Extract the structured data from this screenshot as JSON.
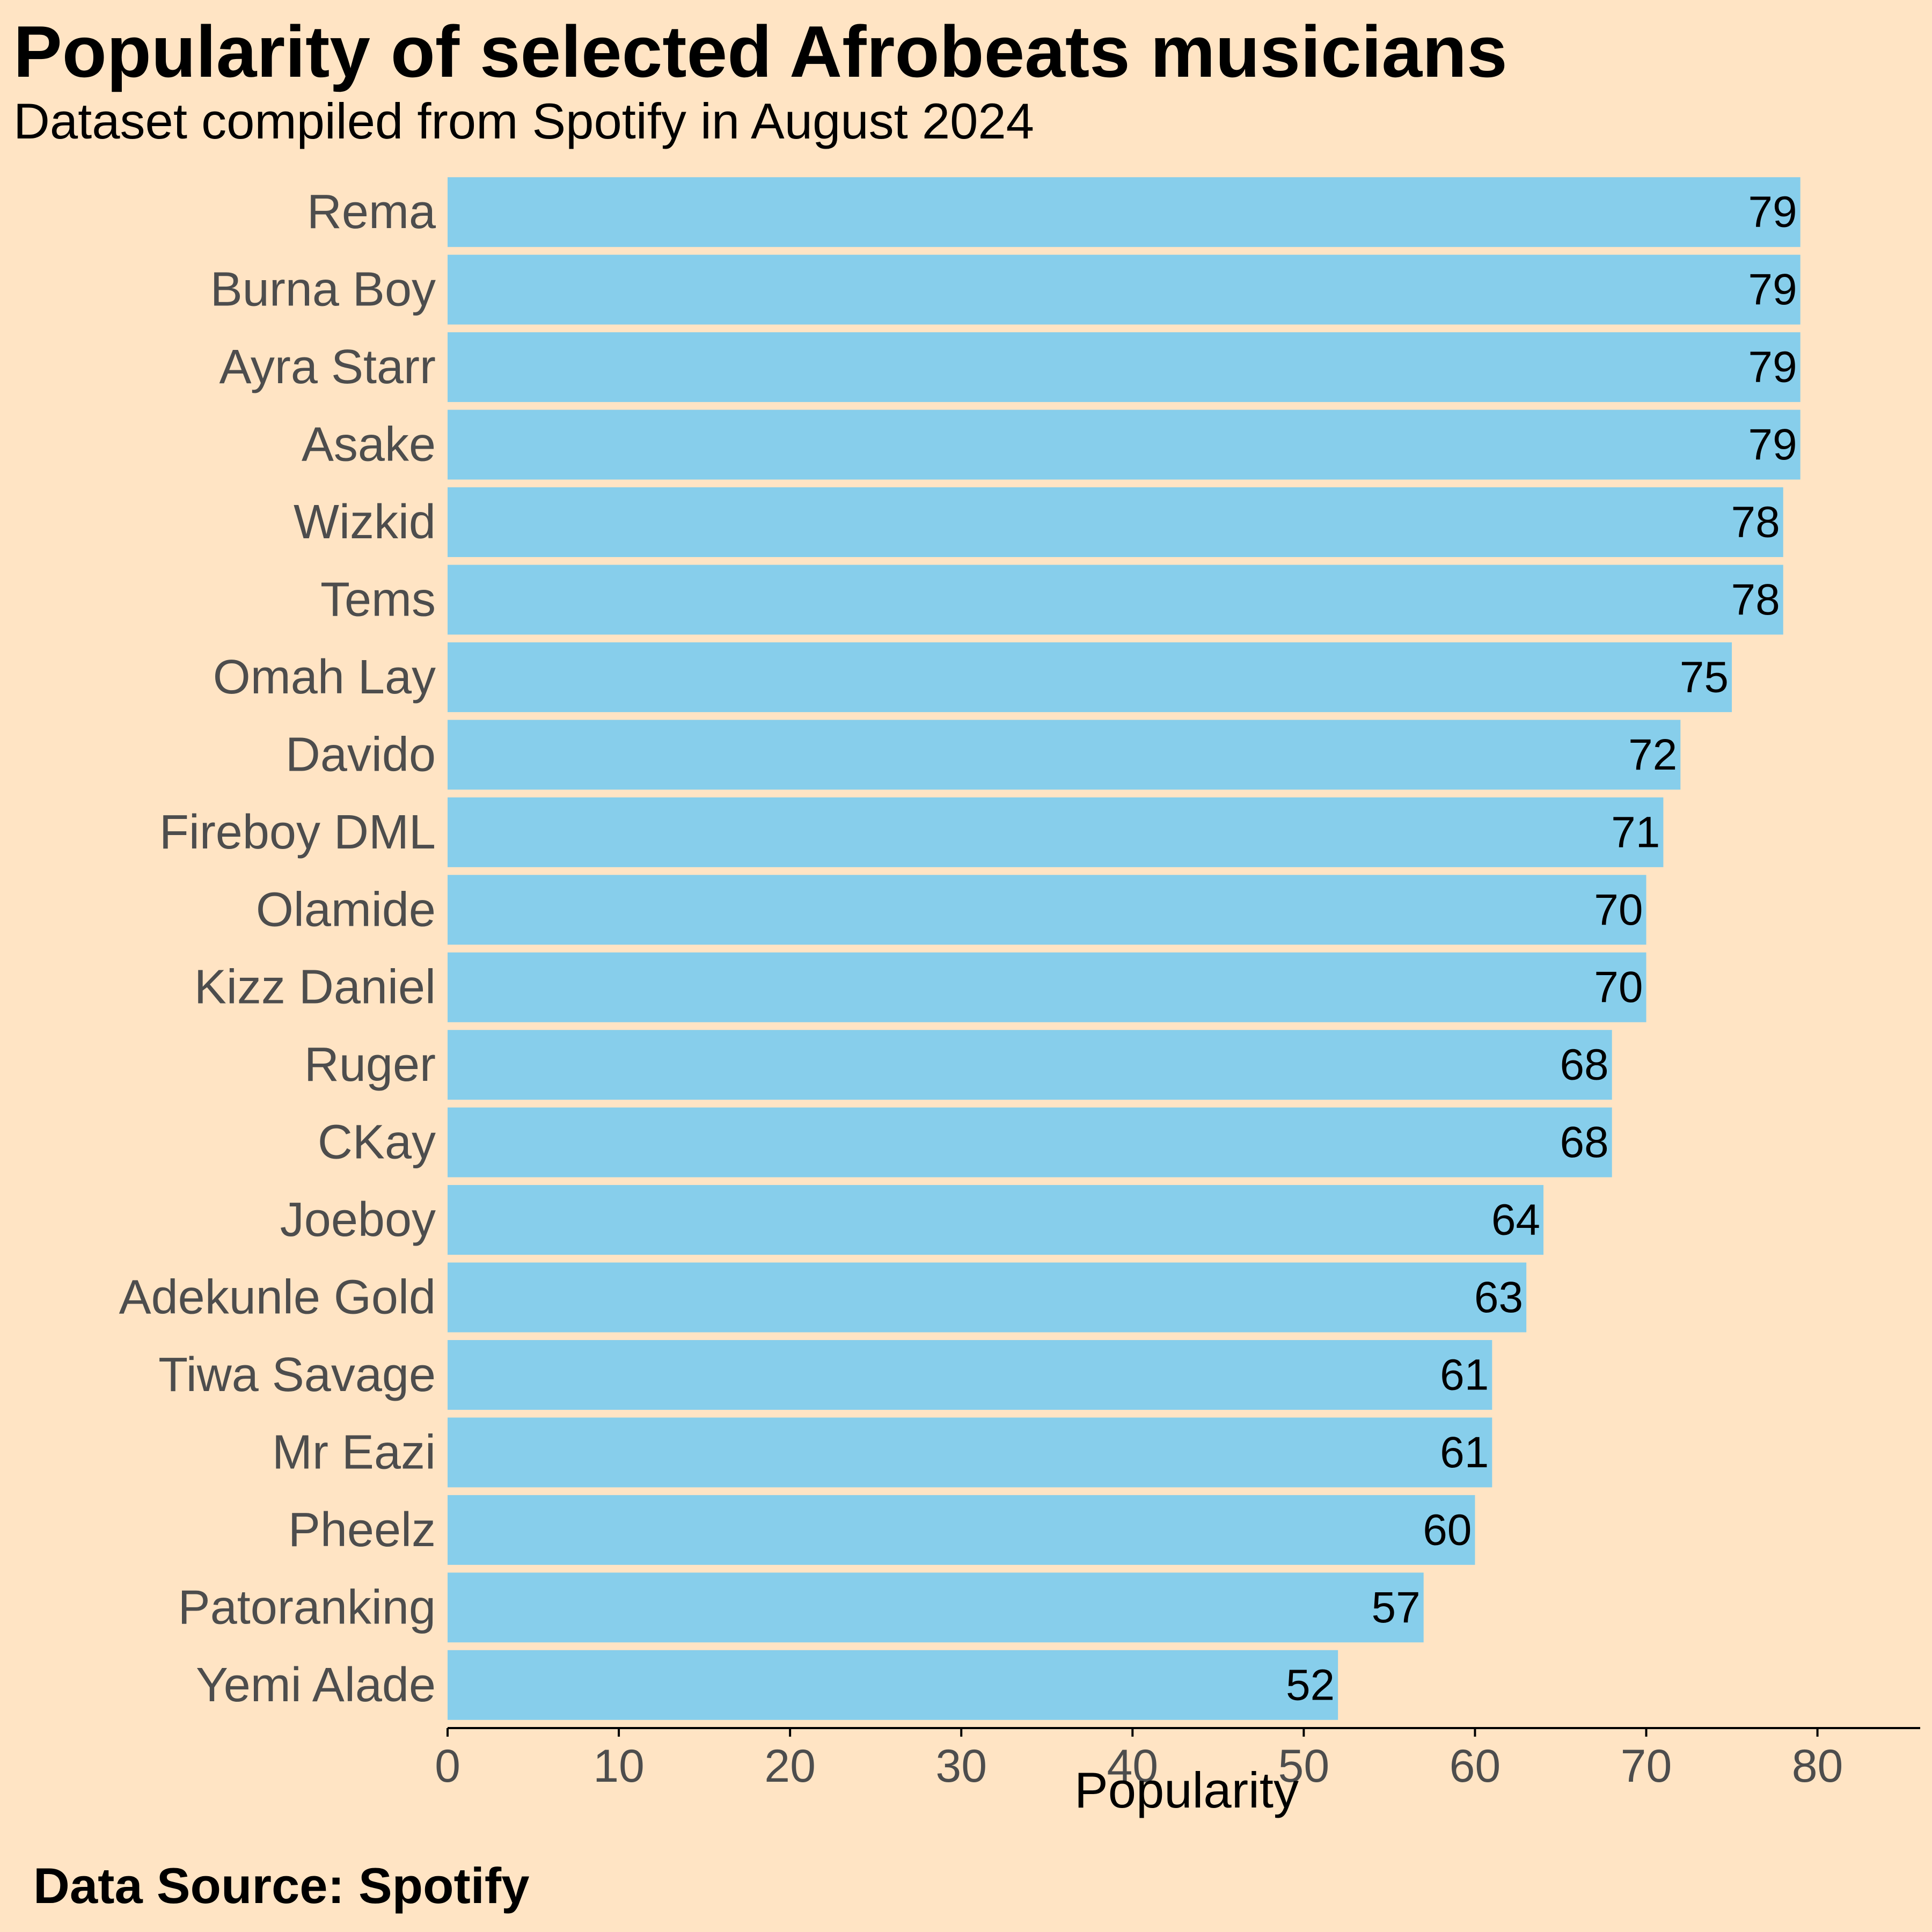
{
  "title": "Popularity of selected Afrobeats musicians",
  "subtitle": "Dataset compiled from Spotify in August 2024",
  "caption": "Data Source: Spotify",
  "colors": {
    "background": "#FFE4C4",
    "bar": "#87CEEB",
    "axis": "#000000",
    "category_text": "#4D4D4D"
  },
  "chart_data": {
    "type": "bar",
    "orientation": "horizontal",
    "title": "Popularity of selected Afrobeats musicians",
    "subtitle": "Dataset compiled from Spotify in August 2024",
    "xlabel": "Popularity",
    "ylabel": "",
    "xlim": [
      0,
      86
    ],
    "xticks": [
      0,
      10,
      20,
      30,
      40,
      50,
      60,
      70,
      80
    ],
    "grid": false,
    "legend": "none",
    "categories": [
      "Rema",
      "Burna Boy",
      "Ayra Starr",
      "Asake",
      "Wizkid",
      "Tems",
      "Omah Lay",
      "Davido",
      "Fireboy DML",
      "Olamide",
      "Kizz Daniel",
      "Ruger",
      "CKay",
      "Joeboy",
      "Adekunle Gold",
      "Tiwa Savage",
      "Mr Eazi",
      "Pheelz",
      "Patoranking",
      "Yemi Alade"
    ],
    "values": [
      79,
      79,
      79,
      79,
      78,
      78,
      75,
      72,
      71,
      70,
      70,
      68,
      68,
      64,
      63,
      61,
      61,
      60,
      57,
      52
    ],
    "caption": "Data Source: Spotify"
  }
}
